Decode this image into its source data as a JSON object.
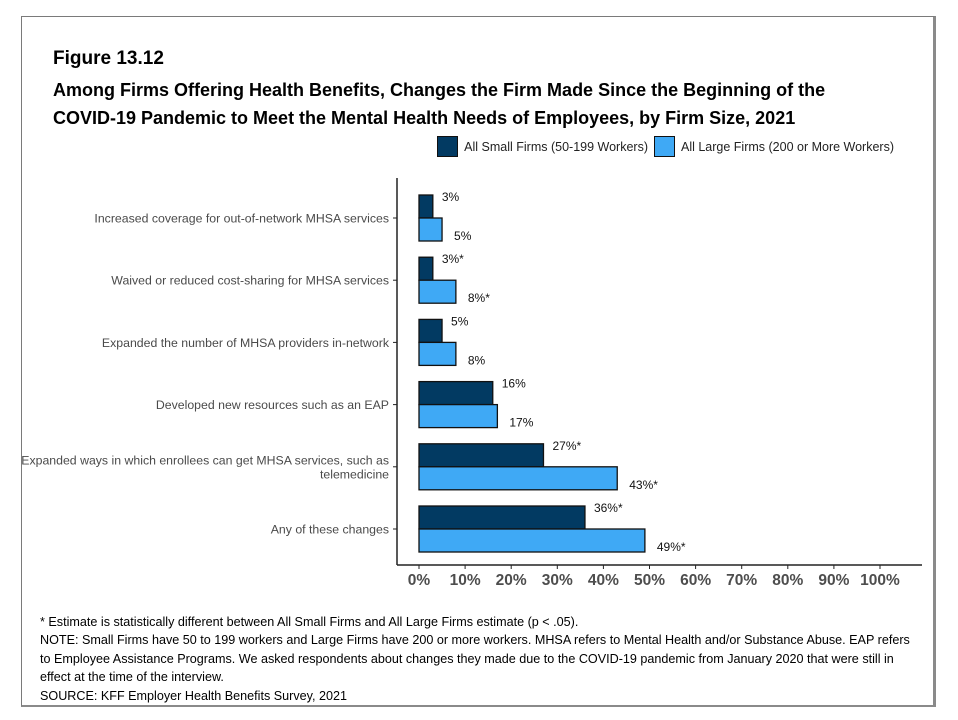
{
  "figure_label": "Figure 13.12",
  "title_line1": "Among Firms Offering Health Benefits, Changes the Firm Made Since the Beginning of the",
  "title_line2": "COVID-19 Pandemic to Meet the Mental Health Needs of Employees, by Firm Size, 2021",
  "colors": {
    "small": "#023a62",
    "large": "#3fa9f5"
  },
  "chart_data": {
    "type": "bar",
    "orientation": "horizontal",
    "title": "Among Firms Offering Health Benefits, Changes the Firm Made Since the Beginning of the COVID-19 Pandemic to Meet the Mental Health Needs of Employees, by Firm Size, 2021",
    "categories": [
      [
        "Increased coverage for out-of-network MHSA services"
      ],
      [
        "Waived or reduced cost-sharing for MHSA services"
      ],
      [
        "Expanded the number of MHSA providers in-network"
      ],
      [
        "Developed new resources such as an EAP"
      ],
      [
        "Expanded ways in which enrollees can get MHSA services, such as",
        "telemedicine"
      ],
      [
        "Any of these changes"
      ]
    ],
    "series": [
      {
        "name": "All Small Firms (50-199 Workers)",
        "values": [
          3,
          3,
          5,
          16,
          27,
          36
        ],
        "labels": [
          "3%",
          "3%*",
          "5%",
          "16%",
          "27%*",
          "36%*"
        ]
      },
      {
        "name": "All Large Firms (200 or More Workers)",
        "values": [
          5,
          8,
          8,
          17,
          43,
          49
        ],
        "labels": [
          "5%",
          "8%*",
          "8%",
          "17%",
          "43%*",
          "49%*"
        ]
      }
    ],
    "xlim": [
      0,
      100
    ],
    "xticks": [
      0,
      10,
      20,
      30,
      40,
      50,
      60,
      70,
      80,
      90,
      100
    ],
    "xtick_labels": [
      "0%",
      "10%",
      "20%",
      "30%",
      "40%",
      "50%",
      "60%",
      "70%",
      "80%",
      "90%",
      "100%"
    ],
    "xlabel": "",
    "ylabel": "",
    "grid": false,
    "legend_position": "top-right"
  },
  "notes": {
    "significance": "* Estimate is statistically different between All Small Firms and All Large Firms estimate (p < .05).",
    "note_line1": "NOTE: Small Firms have 50 to 199 workers and Large Firms have 200 or more workers.  MHSA refers to Mental Health and/or Substance Abuse.  EAP refers",
    "note_line2": "to Employee Assistance Programs.  We asked respondents about changes they made due to the COVID-19 pandemic from January 2020 that were still in",
    "note_line3": "effect at the time of the interview.",
    "source": "SOURCE: KFF Employer Health Benefits Survey, 2021"
  }
}
